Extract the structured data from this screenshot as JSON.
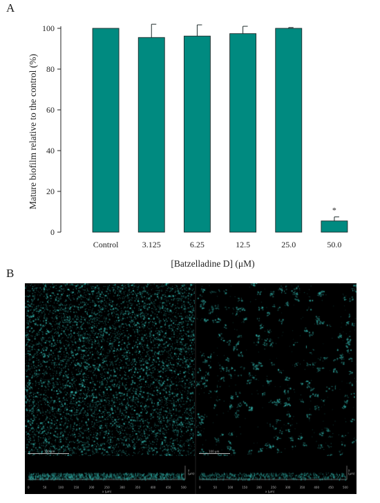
{
  "panel_labels": {
    "a": "A",
    "b": "B"
  },
  "chart_data": {
    "type": "bar",
    "categories": [
      "Control",
      "3.125",
      "6.25",
      "12.5",
      "25.0",
      "50.0"
    ],
    "values": [
      100,
      95.5,
      96.2,
      97.4,
      100,
      5.5
    ],
    "errors": [
      0,
      6.5,
      5.5,
      3.6,
      0.4,
      2.0
    ],
    "significance": [
      "",
      "",
      "",
      "",
      "",
      "*"
    ],
    "ylim": [
      0,
      100
    ],
    "yticks": [
      0,
      20,
      40,
      60,
      80,
      100
    ],
    "xlabel": "[Batzelladine D] (μM)",
    "ylabel": "Mature biofilm relative to the control (%)",
    "bar_color": "#008a80",
    "grid": false
  },
  "microscopy": {
    "background": "#000000",
    "signal_color": "#2fa7a0",
    "panels": [
      {
        "scale_label": "100 μm",
        "side_axis_label": "y (μm)",
        "bottom_axis_label": "x (μm)"
      },
      {
        "scale_label": "100 μm",
        "side_axis_label": "y (μm)",
        "bottom_axis_label": "x (μm)"
      }
    ],
    "x_ticks": [
      "0",
      "50",
      "100",
      "150",
      "200",
      "250",
      "300",
      "350",
      "400",
      "450",
      "500"
    ]
  }
}
